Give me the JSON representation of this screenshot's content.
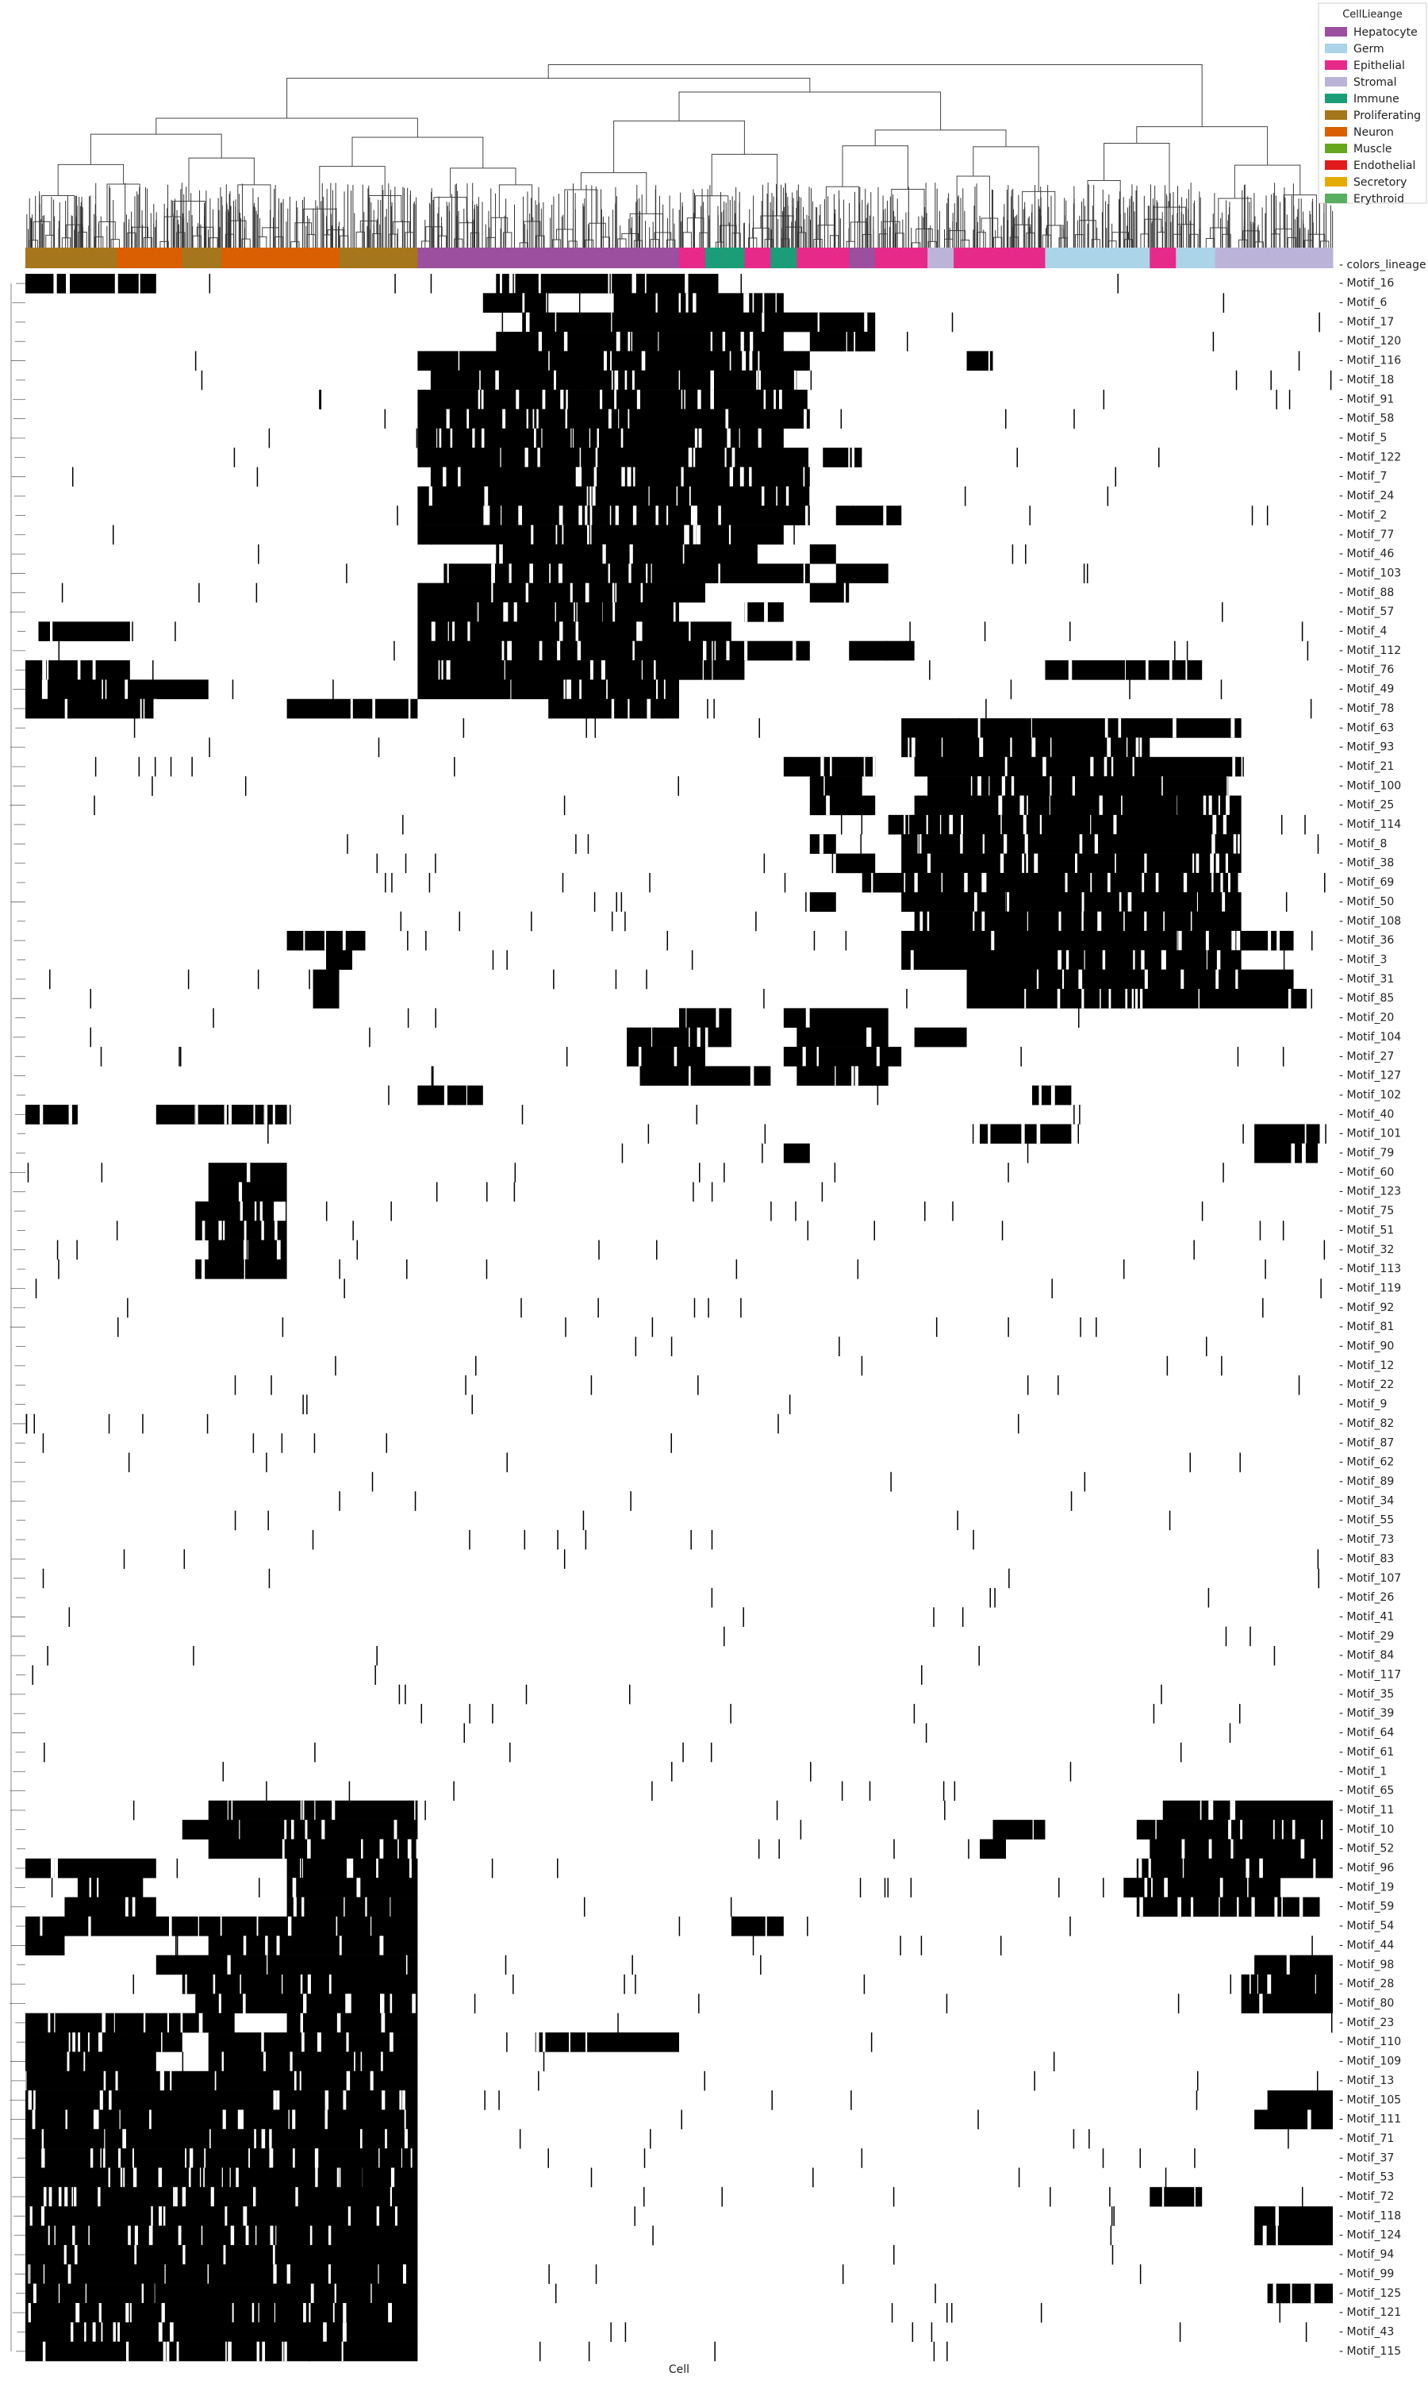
{
  "chart_data": {
    "type": "heatmap",
    "title": "",
    "xlabel": "Cell",
    "ylabel": "",
    "color_row_label": "colors_lineage",
    "legend": {
      "title": "CellLieange",
      "placement": "top-right",
      "entries": [
        {
          "name": "Hepatocyte",
          "color": "#9b4f9e"
        },
        {
          "name": "Germ",
          "color": "#abd4e8"
        },
        {
          "name": "Epithelial",
          "color": "#e7298a"
        },
        {
          "name": "Stromal",
          "color": "#bcb3d9"
        },
        {
          "name": "Immune",
          "color": "#1b9e77"
        },
        {
          "name": "Proliferating",
          "color": "#a6761d"
        },
        {
          "name": "Neuron",
          "color": "#d95f02"
        },
        {
          "name": "Muscle",
          "color": "#66a61e"
        },
        {
          "name": "Endothelial",
          "color": "#e31a1c"
        },
        {
          "name": "Secretory",
          "color": "#e6ab02"
        },
        {
          "name": "Erythroid",
          "color": "#5aae61"
        }
      ]
    },
    "cell_column_groups": [
      {
        "lineage": "Proliferating",
        "fraction": 0.07
      },
      {
        "lineage": "Neuron",
        "fraction": 0.05
      },
      {
        "lineage": "Proliferating",
        "fraction": 0.03
      },
      {
        "lineage": "Neuron",
        "fraction": 0.09
      },
      {
        "lineage": "Proliferating",
        "fraction": 0.06
      },
      {
        "lineage": "Hepatocyte",
        "fraction": 0.2
      },
      {
        "lineage": "Epithelial",
        "fraction": 0.02
      },
      {
        "lineage": "Immune",
        "fraction": 0.03
      },
      {
        "lineage": "Epithelial",
        "fraction": 0.02
      },
      {
        "lineage": "Immune",
        "fraction": 0.02
      },
      {
        "lineage": "Epithelial",
        "fraction": 0.04
      },
      {
        "lineage": "Hepatocyte",
        "fraction": 0.02
      },
      {
        "lineage": "Epithelial",
        "fraction": 0.04
      },
      {
        "lineage": "Stromal",
        "fraction": 0.02
      },
      {
        "lineage": "Epithelial",
        "fraction": 0.07
      },
      {
        "lineage": "Germ",
        "fraction": 0.08
      },
      {
        "lineage": "Epithelial",
        "fraction": 0.02
      },
      {
        "lineage": "Germ",
        "fraction": 0.03
      },
      {
        "lineage": "Stromal",
        "fraction": 0.03
      },
      {
        "lineage": "Stromal",
        "fraction": 0.06
      }
    ],
    "rows": [
      {
        "motif": "Motif_16",
        "active_ranges": [
          [
            0.0,
            0.1
          ],
          [
            0.36,
            0.53
          ]
        ]
      },
      {
        "motif": "Motif_6",
        "active_ranges": [
          [
            0.35,
            0.4
          ],
          [
            0.45,
            0.58
          ]
        ]
      },
      {
        "motif": "Motif_17",
        "active_ranges": [
          [
            0.38,
            0.65
          ]
        ]
      },
      {
        "motif": "Motif_120",
        "active_ranges": [
          [
            0.36,
            0.58
          ],
          [
            0.6,
            0.65
          ]
        ]
      },
      {
        "motif": "Motif_116",
        "active_ranges": [
          [
            0.3,
            0.6
          ],
          [
            0.72,
            0.74
          ]
        ]
      },
      {
        "motif": "Motif_18",
        "active_ranges": [
          [
            0.31,
            0.59
          ]
        ]
      },
      {
        "motif": "Motif_91",
        "active_ranges": [
          [
            0.3,
            0.6
          ]
        ]
      },
      {
        "motif": "Motif_58",
        "active_ranges": [
          [
            0.3,
            0.6
          ]
        ]
      },
      {
        "motif": "Motif_5",
        "active_ranges": [
          [
            0.3,
            0.58
          ]
        ]
      },
      {
        "motif": "Motif_122",
        "active_ranges": [
          [
            0.3,
            0.6
          ],
          [
            0.61,
            0.64
          ]
        ]
      },
      {
        "motif": "Motif_7",
        "active_ranges": [
          [
            0.31,
            0.6
          ]
        ]
      },
      {
        "motif": "Motif_24",
        "active_ranges": [
          [
            0.3,
            0.6
          ]
        ]
      },
      {
        "motif": "Motif_2",
        "active_ranges": [
          [
            0.3,
            0.6
          ],
          [
            0.62,
            0.67
          ]
        ]
      },
      {
        "motif": "Motif_77",
        "active_ranges": [
          [
            0.3,
            0.58
          ]
        ]
      },
      {
        "motif": "Motif_46",
        "active_ranges": [
          [
            0.36,
            0.56
          ],
          [
            0.6,
            0.62
          ]
        ]
      },
      {
        "motif": "Motif_103",
        "active_ranges": [
          [
            0.32,
            0.6
          ],
          [
            0.62,
            0.66
          ]
        ]
      },
      {
        "motif": "Motif_88",
        "active_ranges": [
          [
            0.3,
            0.52
          ],
          [
            0.6,
            0.63
          ]
        ]
      },
      {
        "motif": "Motif_57",
        "active_ranges": [
          [
            0.3,
            0.5
          ],
          [
            0.55,
            0.58
          ]
        ]
      },
      {
        "motif": "Motif_4",
        "active_ranges": [
          [
            0.01,
            0.08
          ],
          [
            0.3,
            0.54
          ]
        ]
      },
      {
        "motif": "Motif_112",
        "active_ranges": [
          [
            0.3,
            0.6
          ],
          [
            0.63,
            0.68
          ]
        ]
      },
      {
        "motif": "Motif_76",
        "active_ranges": [
          [
            0.0,
            0.08
          ],
          [
            0.3,
            0.55
          ],
          [
            0.78,
            0.9
          ]
        ]
      },
      {
        "motif": "Motif_49",
        "active_ranges": [
          [
            0.0,
            0.14
          ],
          [
            0.3,
            0.5
          ]
        ]
      },
      {
        "motif": "Motif_78",
        "active_ranges": [
          [
            0.0,
            0.1
          ],
          [
            0.2,
            0.3
          ],
          [
            0.4,
            0.5
          ]
        ]
      },
      {
        "motif": "Motif_63",
        "active_ranges": [
          [
            0.67,
            0.93
          ]
        ]
      },
      {
        "motif": "Motif_93",
        "active_ranges": [
          [
            0.67,
            0.86
          ]
        ]
      },
      {
        "motif": "Motif_21",
        "active_ranges": [
          [
            0.58,
            0.65
          ],
          [
            0.68,
            0.93
          ]
        ]
      },
      {
        "motif": "Motif_100",
        "active_ranges": [
          [
            0.6,
            0.64
          ],
          [
            0.69,
            0.92
          ]
        ]
      },
      {
        "motif": "Motif_25",
        "active_ranges": [
          [
            0.6,
            0.65
          ],
          [
            0.68,
            0.93
          ]
        ]
      },
      {
        "motif": "Motif_114",
        "active_ranges": [
          [
            0.66,
            0.93
          ]
        ]
      },
      {
        "motif": "Motif_8",
        "active_ranges": [
          [
            0.6,
            0.62
          ],
          [
            0.67,
            0.93
          ]
        ]
      },
      {
        "motif": "Motif_38",
        "active_ranges": [
          [
            0.62,
            0.65
          ],
          [
            0.67,
            0.93
          ]
        ]
      },
      {
        "motif": "Motif_69",
        "active_ranges": [
          [
            0.64,
            0.93
          ]
        ]
      },
      {
        "motif": "Motif_50",
        "active_ranges": [
          [
            0.6,
            0.62
          ],
          [
            0.67,
            0.93
          ]
        ]
      },
      {
        "motif": "Motif_108",
        "active_ranges": [
          [
            0.68,
            0.93
          ]
        ]
      },
      {
        "motif": "Motif_36",
        "active_ranges": [
          [
            0.2,
            0.26
          ],
          [
            0.67,
            0.97
          ]
        ]
      },
      {
        "motif": "Motif_3",
        "active_ranges": [
          [
            0.23,
            0.25
          ],
          [
            0.67,
            0.93
          ]
        ]
      },
      {
        "motif": "Motif_31",
        "active_ranges": [
          [
            0.22,
            0.24
          ],
          [
            0.72,
            0.97
          ]
        ]
      },
      {
        "motif": "Motif_85",
        "active_ranges": [
          [
            0.22,
            0.24
          ],
          [
            0.72,
            0.98
          ]
        ]
      },
      {
        "motif": "Motif_20",
        "active_ranges": [
          [
            0.5,
            0.54
          ],
          [
            0.58,
            0.66
          ]
        ]
      },
      {
        "motif": "Motif_104",
        "active_ranges": [
          [
            0.46,
            0.54
          ],
          [
            0.59,
            0.66
          ],
          [
            0.68,
            0.72
          ]
        ]
      },
      {
        "motif": "Motif_27",
        "active_ranges": [
          [
            0.46,
            0.52
          ],
          [
            0.58,
            0.67
          ]
        ]
      },
      {
        "motif": "Motif_127",
        "active_ranges": [
          [
            0.47,
            0.57
          ],
          [
            0.59,
            0.66
          ]
        ]
      },
      {
        "motif": "Motif_102",
        "active_ranges": [
          [
            0.3,
            0.35
          ],
          [
            0.77,
            0.8
          ]
        ]
      },
      {
        "motif": "Motif_40",
        "active_ranges": [
          [
            0.0,
            0.04
          ],
          [
            0.1,
            0.2
          ]
        ]
      },
      {
        "motif": "Motif_101",
        "active_ranges": [
          [
            0.73,
            0.8
          ],
          [
            0.94,
            0.99
          ]
        ]
      },
      {
        "motif": "Motif_79",
        "active_ranges": [
          [
            0.58,
            0.6
          ],
          [
            0.94,
            0.99
          ]
        ]
      },
      {
        "motif": "Motif_60",
        "active_ranges": [
          [
            0.14,
            0.2
          ]
        ]
      },
      {
        "motif": "Motif_123",
        "active_ranges": [
          [
            0.14,
            0.2
          ]
        ]
      },
      {
        "motif": "Motif_75",
        "active_ranges": [
          [
            0.13,
            0.19
          ]
        ]
      },
      {
        "motif": "Motif_51",
        "active_ranges": [
          [
            0.13,
            0.2
          ]
        ]
      },
      {
        "motif": "Motif_32",
        "active_ranges": [
          [
            0.14,
            0.2
          ]
        ]
      },
      {
        "motif": "Motif_113",
        "active_ranges": [
          [
            0.13,
            0.2
          ]
        ]
      },
      {
        "motif": "Motif_119",
        "active_ranges": []
      },
      {
        "motif": "Motif_92",
        "active_ranges": []
      },
      {
        "motif": "Motif_81",
        "active_ranges": []
      },
      {
        "motif": "Motif_90",
        "active_ranges": []
      },
      {
        "motif": "Motif_12",
        "active_ranges": []
      },
      {
        "motif": "Motif_22",
        "active_ranges": []
      },
      {
        "motif": "Motif_9",
        "active_ranges": []
      },
      {
        "motif": "Motif_82",
        "active_ranges": []
      },
      {
        "motif": "Motif_87",
        "active_ranges": []
      },
      {
        "motif": "Motif_62",
        "active_ranges": []
      },
      {
        "motif": "Motif_89",
        "active_ranges": []
      },
      {
        "motif": "Motif_34",
        "active_ranges": []
      },
      {
        "motif": "Motif_55",
        "active_ranges": []
      },
      {
        "motif": "Motif_73",
        "active_ranges": []
      },
      {
        "motif": "Motif_83",
        "active_ranges": []
      },
      {
        "motif": "Motif_107",
        "active_ranges": []
      },
      {
        "motif": "Motif_26",
        "active_ranges": []
      },
      {
        "motif": "Motif_41",
        "active_ranges": []
      },
      {
        "motif": "Motif_29",
        "active_ranges": []
      },
      {
        "motif": "Motif_84",
        "active_ranges": []
      },
      {
        "motif": "Motif_117",
        "active_ranges": []
      },
      {
        "motif": "Motif_35",
        "active_ranges": []
      },
      {
        "motif": "Motif_39",
        "active_ranges": []
      },
      {
        "motif": "Motif_64",
        "active_ranges": []
      },
      {
        "motif": "Motif_61",
        "active_ranges": []
      },
      {
        "motif": "Motif_1",
        "active_ranges": []
      },
      {
        "motif": "Motif_65",
        "active_ranges": []
      },
      {
        "motif": "Motif_11",
        "active_ranges": [
          [
            0.14,
            0.3
          ],
          [
            0.87,
            1.0
          ]
        ]
      },
      {
        "motif": "Motif_10",
        "active_ranges": [
          [
            0.12,
            0.3
          ],
          [
            0.74,
            0.78
          ],
          [
            0.85,
            1.0
          ]
        ]
      },
      {
        "motif": "Motif_52",
        "active_ranges": [
          [
            0.14,
            0.3
          ],
          [
            0.73,
            0.75
          ],
          [
            0.86,
            1.0
          ]
        ]
      },
      {
        "motif": "Motif_96",
        "active_ranges": [
          [
            0.0,
            0.1
          ],
          [
            0.2,
            0.3
          ],
          [
            0.85,
            1.0
          ]
        ]
      },
      {
        "motif": "Motif_19",
        "active_ranges": [
          [
            0.04,
            0.09
          ],
          [
            0.2,
            0.3
          ],
          [
            0.84,
            0.96
          ]
        ]
      },
      {
        "motif": "Motif_59",
        "active_ranges": [
          [
            0.03,
            0.1
          ],
          [
            0.2,
            0.3
          ],
          [
            0.85,
            0.99
          ]
        ]
      },
      {
        "motif": "Motif_54",
        "active_ranges": [
          [
            0.0,
            0.3
          ],
          [
            0.54,
            0.58
          ]
        ]
      },
      {
        "motif": "Motif_44",
        "active_ranges": [
          [
            0.0,
            0.03
          ],
          [
            0.14,
            0.3
          ]
        ]
      },
      {
        "motif": "Motif_98",
        "active_ranges": [
          [
            0.1,
            0.3
          ],
          [
            0.94,
            1.0
          ]
        ]
      },
      {
        "motif": "Motif_28",
        "active_ranges": [
          [
            0.12,
            0.3
          ],
          [
            0.93,
            1.0
          ]
        ]
      },
      {
        "motif": "Motif_80",
        "active_ranges": [
          [
            0.13,
            0.3
          ],
          [
            0.93,
            1.0
          ]
        ]
      },
      {
        "motif": "Motif_23",
        "active_ranges": [
          [
            0.0,
            0.16
          ],
          [
            0.2,
            0.3
          ]
        ]
      },
      {
        "motif": "Motif_110",
        "active_ranges": [
          [
            0.0,
            0.12
          ],
          [
            0.14,
            0.3
          ],
          [
            0.39,
            0.5
          ]
        ]
      },
      {
        "motif": "Motif_109",
        "active_ranges": [
          [
            0.0,
            0.1
          ],
          [
            0.14,
            0.3
          ]
        ]
      },
      {
        "motif": "Motif_13",
        "active_ranges": [
          [
            0.0,
            0.3
          ]
        ]
      },
      {
        "motif": "Motif_105",
        "active_ranges": [
          [
            0.0,
            0.3
          ],
          [
            0.95,
            1.0
          ]
        ]
      },
      {
        "motif": "Motif_111",
        "active_ranges": [
          [
            0.0,
            0.3
          ],
          [
            0.94,
            1.0
          ]
        ]
      },
      {
        "motif": "Motif_71",
        "active_ranges": [
          [
            0.0,
            0.3
          ]
        ]
      },
      {
        "motif": "Motif_37",
        "active_ranges": [
          [
            0.0,
            0.3
          ]
        ]
      },
      {
        "motif": "Motif_53",
        "active_ranges": [
          [
            0.0,
            0.3
          ]
        ]
      },
      {
        "motif": "Motif_72",
        "active_ranges": [
          [
            0.0,
            0.3
          ],
          [
            0.86,
            0.9
          ]
        ]
      },
      {
        "motif": "Motif_118",
        "active_ranges": [
          [
            0.0,
            0.3
          ],
          [
            0.94,
            1.0
          ]
        ]
      },
      {
        "motif": "Motif_124",
        "active_ranges": [
          [
            0.0,
            0.3
          ],
          [
            0.94,
            1.0
          ]
        ]
      },
      {
        "motif": "Motif_94",
        "active_ranges": [
          [
            0.0,
            0.3
          ]
        ]
      },
      {
        "motif": "Motif_99",
        "active_ranges": [
          [
            0.0,
            0.3
          ]
        ]
      },
      {
        "motif": "Motif_125",
        "active_ranges": [
          [
            0.0,
            0.3
          ],
          [
            0.95,
            1.0
          ]
        ]
      },
      {
        "motif": "Motif_121",
        "active_ranges": [
          [
            0.0,
            0.3
          ]
        ]
      },
      {
        "motif": "Motif_43",
        "active_ranges": [
          [
            0.0,
            0.3
          ]
        ]
      },
      {
        "motif": "Motif_115",
        "active_ranges": [
          [
            0.0,
            0.3
          ]
        ]
      }
    ]
  }
}
